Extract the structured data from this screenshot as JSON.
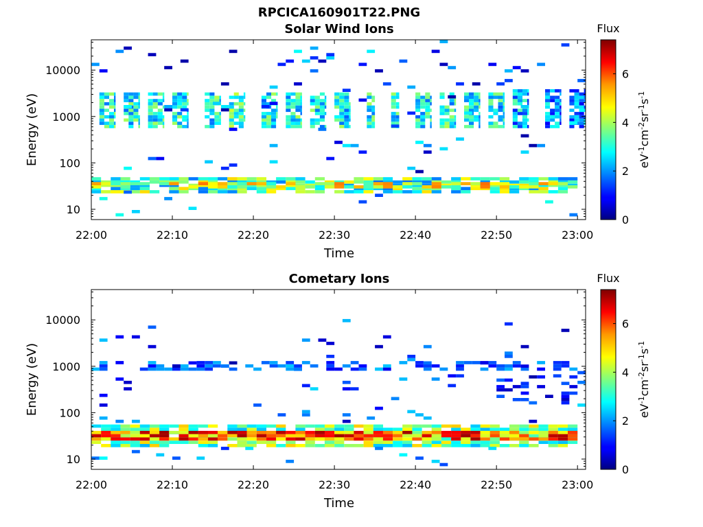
{
  "figure_title": "RPCICA160901T22.PNG",
  "chart_data": [
    {
      "type": "heatmap",
      "title": "Solar Wind Ions",
      "xlabel": "Time",
      "ylabel": "Energy (eV)",
      "x_ticks": [
        "22:00",
        "22:10",
        "22:20",
        "22:30",
        "22:40",
        "22:50",
        "23:00"
      ],
      "y_ticks": [
        "10",
        "100",
        "1000",
        "10000"
      ],
      "y_scale": "log",
      "xlim": [
        "22:00",
        "23:01"
      ],
      "ylim": [
        6,
        45000
      ],
      "colorbar": {
        "title": "Flux",
        "label": "eV-1cm-2sr-1s-1",
        "ticks": [
          "0",
          "2",
          "4",
          "6"
        ],
        "range": [
          0,
          7.4
        ],
        "colormap": "jet"
      },
      "grid": false,
      "cells": [
        {
          "t0": "22:00",
          "t1": "23:00",
          "e0": 22,
          "e1": 42,
          "v": 3.3,
          "step": 1.2,
          "vary": 1.6,
          "skip": 0.22
        },
        {
          "t0": "22:00",
          "t1": "23:00",
          "e0": 28,
          "e1": 36,
          "v": 4.4,
          "step": 1.2,
          "vary": 1.4,
          "skip": 0.35
        },
        {
          "t0": "22:01",
          "t1": "22:03",
          "e0": 560,
          "e1": 3200,
          "v": 2.8,
          "step": 0.6,
          "vary": 1.2,
          "skip": 0.2
        },
        {
          "t0": "22:04",
          "t1": "22:06",
          "e0": 560,
          "e1": 3200,
          "v": 2.8,
          "step": 0.6,
          "vary": 1.2,
          "skip": 0.2
        },
        {
          "t0": "22:07",
          "t1": "22:09",
          "e0": 560,
          "e1": 3200,
          "v": 2.9,
          "step": 0.6,
          "vary": 1.2,
          "skip": 0.2
        },
        {
          "t0": "22:10",
          "t1": "22:12",
          "e0": 560,
          "e1": 3200,
          "v": 2.8,
          "step": 0.6,
          "vary": 1.2,
          "skip": 0.2
        },
        {
          "t0": "22:14",
          "t1": "22:16",
          "e0": 560,
          "e1": 3200,
          "v": 2.9,
          "step": 0.6,
          "vary": 1.2,
          "skip": 0.2
        },
        {
          "t0": "22:17",
          "t1": "22:19",
          "e0": 560,
          "e1": 3200,
          "v": 3.1,
          "step": 0.6,
          "vary": 1.2,
          "skip": 0.2
        },
        {
          "t0": "22:21",
          "t1": "22:23",
          "e0": 560,
          "e1": 3200,
          "v": 2.8,
          "step": 0.6,
          "vary": 1.2,
          "skip": 0.2
        },
        {
          "t0": "22:24",
          "t1": "22:26",
          "e0": 560,
          "e1": 3200,
          "v": 2.9,
          "step": 0.6,
          "vary": 1.2,
          "skip": 0.2
        },
        {
          "t0": "22:27",
          "t1": "22:29",
          "e0": 560,
          "e1": 3200,
          "v": 2.9,
          "step": 0.6,
          "vary": 1.2,
          "skip": 0.2
        },
        {
          "t0": "22:30",
          "t1": "22:32",
          "e0": 560,
          "e1": 3200,
          "v": 2.8,
          "step": 0.6,
          "vary": 1.2,
          "skip": 0.2
        },
        {
          "t0": "22:34",
          "t1": "22:35",
          "e0": 560,
          "e1": 3200,
          "v": 3.0,
          "step": 0.6,
          "vary": 1.2,
          "skip": 0.2
        },
        {
          "t0": "22:37",
          "t1": "22:38",
          "e0": 560,
          "e1": 3200,
          "v": 2.9,
          "step": 0.6,
          "vary": 1.2,
          "skip": 0.2
        },
        {
          "t0": "22:40",
          "t1": "22:42",
          "e0": 560,
          "e1": 3200,
          "v": 2.8,
          "step": 0.6,
          "vary": 1.2,
          "skip": 0.2
        },
        {
          "t0": "22:43",
          "t1": "22:45",
          "e0": 560,
          "e1": 3200,
          "v": 2.9,
          "step": 0.6,
          "vary": 1.2,
          "skip": 0.2
        },
        {
          "t0": "22:46",
          "t1": "22:48",
          "e0": 560,
          "e1": 3200,
          "v": 2.8,
          "step": 0.6,
          "vary": 1.2,
          "skip": 0.2
        },
        {
          "t0": "22:49",
          "t1": "22:51",
          "e0": 560,
          "e1": 3200,
          "v": 2.7,
          "step": 0.6,
          "vary": 1.2,
          "skip": 0.2
        },
        {
          "t0": "22:52",
          "t1": "22:54",
          "e0": 560,
          "e1": 3400,
          "v": 2.3,
          "step": 0.6,
          "vary": 1.2,
          "skip": 0.2
        },
        {
          "t0": "22:56",
          "t1": "22:58",
          "e0": 560,
          "e1": 3400,
          "v": 1.9,
          "step": 0.6,
          "vary": 1.2,
          "skip": 0.2
        },
        {
          "t0": "22:59",
          "t1": "23:01",
          "e0": 560,
          "e1": 3400,
          "v": 2.0,
          "step": 0.6,
          "vary": 1.2,
          "skip": 0.2
        },
        {
          "t0": "22:00",
          "t1": "23:01",
          "e0": 60,
          "e1": 40000,
          "v": 1.5,
          "step": 1.0,
          "vary": 1.4,
          "skip": 0.96
        },
        {
          "t0": "22:00",
          "t1": "23:00",
          "e0": 7,
          "e1": 22,
          "v": 2.2,
          "step": 1.0,
          "vary": 0.8,
          "skip": 0.96
        }
      ]
    },
    {
      "type": "heatmap",
      "title": "Cometary Ions",
      "xlabel": "Time",
      "ylabel": "Energy (eV)",
      "x_ticks": [
        "22:00",
        "22:10",
        "22:20",
        "22:30",
        "22:40",
        "22:50",
        "23:00"
      ],
      "y_ticks": [
        "10",
        "100",
        "1000",
        "10000"
      ],
      "y_scale": "log",
      "xlim": [
        "22:00",
        "23:01"
      ],
      "ylim": [
        6,
        45000
      ],
      "colorbar": {
        "title": "Flux",
        "label": "eV-1cm-2sr-1s-1",
        "ticks": [
          "0",
          "2",
          "4",
          "6"
        ],
        "range": [
          0,
          7.4
        ],
        "colormap": "jet"
      },
      "grid": false,
      "cells": [
        {
          "t0": "22:00",
          "t1": "23:00",
          "e0": 18,
          "e1": 50,
          "v": 3.6,
          "step": 1.2,
          "vary": 1.4,
          "skip": 0.18
        },
        {
          "t0": "22:00",
          "t1": "23:00",
          "e0": 25,
          "e1": 40,
          "v": 5.6,
          "step": 1.2,
          "vary": 1.6,
          "skip": 0.1
        },
        {
          "t0": "22:00",
          "t1": "23:00",
          "e0": 800,
          "e1": 1200,
          "v": 1.6,
          "step": 1.0,
          "vary": 0.8,
          "skip": 0.55
        },
        {
          "t0": "22:50",
          "t1": "23:00",
          "e0": 150,
          "e1": 600,
          "v": 1.0,
          "step": 1.0,
          "vary": 0.8,
          "skip": 0.7
        },
        {
          "t0": "22:00",
          "t1": "23:01",
          "e0": 60,
          "e1": 10000,
          "v": 1.4,
          "step": 1.0,
          "vary": 1.2,
          "skip": 0.97
        },
        {
          "t0": "22:00",
          "t1": "23:00",
          "e0": 7,
          "e1": 18,
          "v": 2.0,
          "step": 1.0,
          "vary": 0.8,
          "skip": 0.97
        }
      ]
    }
  ]
}
